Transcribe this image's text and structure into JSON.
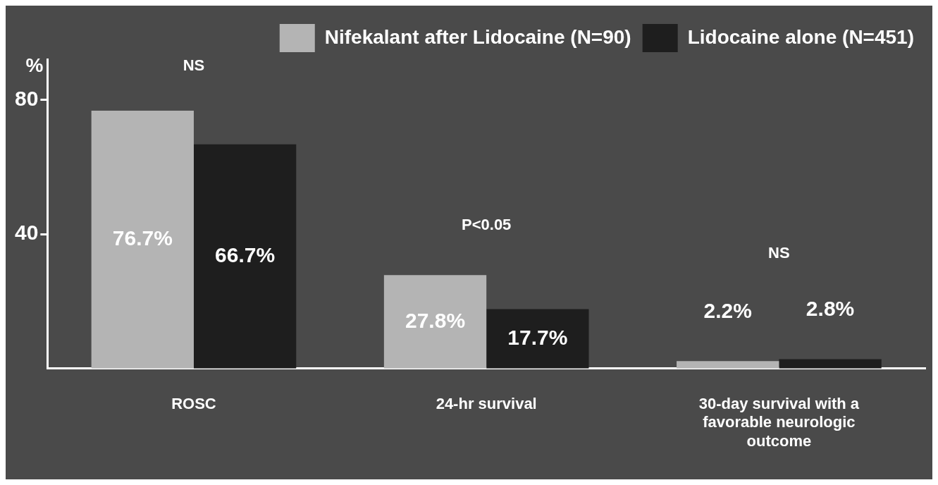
{
  "chart_data": {
    "type": "bar",
    "ylabel": "%",
    "categories": [
      "ROSC",
      "24-hr survival",
      "30-day survival with a favorable neurologic outcome"
    ],
    "series": [
      {
        "name": "Nifekalant after Lidocaine (N=90)",
        "color": "#b4b4b4",
        "values": [
          76.7,
          27.8,
          2.2
        ],
        "value_labels": [
          "76.7%",
          "27.8%",
          "2.2%"
        ]
      },
      {
        "name": "Lidocaine alone (N=451)",
        "color": "#1e1e1e",
        "values": [
          66.7,
          17.7,
          2.8
        ],
        "value_labels": [
          "66.7%",
          "17.7%",
          "2.8%"
        ]
      }
    ],
    "ylim": [
      0,
      92
    ],
    "yticks": [
      40,
      80
    ],
    "grid": false,
    "legend": "top right",
    "annotations": [
      "NS",
      "P<0.05",
      "NS"
    ]
  }
}
